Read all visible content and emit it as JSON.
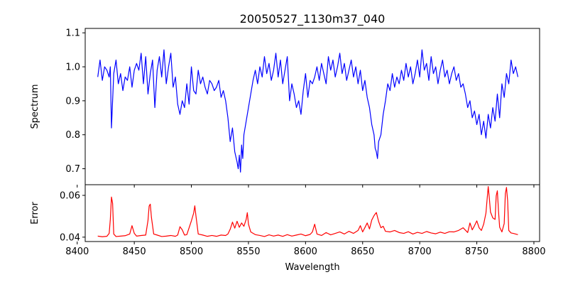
{
  "chart_data": [
    {
      "type": "line",
      "title": "20050527_1130m37_040",
      "xlabel": "",
      "ylabel": "Spectrum",
      "xlim": [
        8407,
        8805
      ],
      "ylim": [
        0.653,
        1.113
      ],
      "xticks": [
        8400,
        8450,
        8500,
        8550,
        8600,
        8650,
        8700,
        8750,
        8800
      ],
      "yticks": [
        0.7,
        0.8,
        0.9,
        1.0,
        1.1
      ],
      "ytick_labels": [
        "0.7",
        "0.8",
        "0.9",
        "1.0",
        "1.1"
      ],
      "grid": false,
      "series": [
        {
          "color": "#0000ff",
          "x": [
            8418,
            8420,
            8422,
            8424,
            8426,
            8428,
            8429,
            8430,
            8432,
            8434,
            8436,
            8438,
            8440,
            8442,
            8444,
            8446,
            8448,
            8450,
            8452,
            8454,
            8456,
            8458,
            8460,
            8462,
            8464,
            8466,
            8468,
            8470,
            8472,
            8474,
            8476,
            8478,
            8480,
            8482,
            8484,
            8486,
            8488,
            8490,
            8492,
            8494,
            8496,
            8498,
            8500,
            8502,
            8504,
            8506,
            8508,
            8510,
            8512,
            8514,
            8516,
            8518,
            8520,
            8522,
            8524,
            8526,
            8528,
            8530,
            8532,
            8534,
            8536,
            8538,
            8540,
            8541,
            8542,
            8543,
            8544,
            8545,
            8546,
            8548,
            8550,
            8552,
            8554,
            8556,
            8558,
            8560,
            8562,
            8564,
            8566,
            8568,
            8570,
            8572,
            8574,
            8576,
            8578,
            8580,
            8582,
            8584,
            8586,
            8588,
            8590,
            8592,
            8594,
            8596,
            8598,
            8600,
            8602,
            8604,
            8606,
            8608,
            8610,
            8612,
            8614,
            8616,
            8618,
            8620,
            8622,
            8624,
            8626,
            8628,
            8630,
            8632,
            8634,
            8636,
            8638,
            8640,
            8642,
            8644,
            8646,
            8648,
            8650,
            8652,
            8654,
            8656,
            8658,
            8660,
            8661,
            8662,
            8663,
            8664,
            8666,
            8668,
            8670,
            8672,
            8674,
            8676,
            8678,
            8680,
            8682,
            8684,
            8686,
            8688,
            8690,
            8692,
            8694,
            8696,
            8698,
            8700,
            8702,
            8704,
            8706,
            8708,
            8710,
            8712,
            8714,
            8716,
            8718,
            8720,
            8722,
            8724,
            8726,
            8728,
            8730,
            8732,
            8734,
            8736,
            8738,
            8740,
            8742,
            8744,
            8746,
            8748,
            8750,
            8752,
            8754,
            8756,
            8758,
            8760,
            8762,
            8764,
            8766,
            8768,
            8770,
            8772,
            8774,
            8776,
            8778,
            8780,
            8782,
            8784,
            8786
          ],
          "y": [
            0.97,
            1.02,
            0.96,
            1.0,
            0.99,
            0.97,
            1.0,
            0.82,
            0.98,
            1.02,
            0.95,
            0.98,
            0.93,
            0.97,
            0.96,
            1.0,
            0.94,
            0.99,
            1.01,
            0.99,
            1.04,
            0.95,
            1.03,
            0.92,
            0.98,
            1.02,
            0.88,
            0.99,
            1.03,
            0.97,
            1.05,
            0.95,
            1.0,
            1.04,
            0.94,
            0.97,
            0.89,
            0.86,
            0.9,
            0.88,
            0.95,
            0.89,
            1.0,
            0.93,
            0.92,
            0.99,
            0.95,
            0.97,
            0.94,
            0.92,
            0.96,
            0.95,
            0.93,
            0.94,
            0.96,
            0.91,
            0.93,
            0.9,
            0.85,
            0.78,
            0.82,
            0.75,
            0.72,
            0.7,
            0.74,
            0.69,
            0.77,
            0.73,
            0.8,
            0.84,
            0.88,
            0.92,
            0.96,
            0.99,
            0.95,
            1.0,
            0.97,
            1.03,
            0.98,
            1.01,
            0.96,
            0.99,
            1.04,
            0.97,
            1.02,
            0.95,
            0.99,
            1.03,
            0.9,
            0.95,
            0.92,
            0.88,
            0.9,
            0.86,
            0.93,
            0.98,
            0.91,
            0.96,
            0.95,
            0.97,
            1.0,
            0.96,
            1.01,
            0.98,
            0.95,
            1.03,
            0.99,
            1.02,
            0.97,
            1.0,
            1.04,
            0.98,
            1.01,
            0.96,
            0.99,
            1.02,
            0.97,
            1.0,
            0.95,
            0.99,
            0.93,
            0.96,
            0.91,
            0.88,
            0.83,
            0.8,
            0.76,
            0.75,
            0.73,
            0.78,
            0.8,
            0.86,
            0.9,
            0.95,
            0.93,
            0.98,
            0.94,
            0.97,
            0.95,
            0.99,
            0.96,
            1.01,
            0.97,
            1.0,
            0.95,
            0.98,
            1.02,
            0.97,
            1.05,
            0.99,
            1.01,
            0.96,
            1.03,
            0.98,
            1.0,
            0.95,
            0.99,
            1.02,
            0.97,
            0.99,
            0.95,
            0.98,
            1.0,
            0.96,
            0.98,
            0.94,
            0.95,
            0.92,
            0.88,
            0.9,
            0.85,
            0.87,
            0.83,
            0.86,
            0.8,
            0.84,
            0.79,
            0.86,
            0.82,
            0.88,
            0.84,
            0.92,
            0.85,
            0.95,
            0.91,
            0.98,
            0.95,
            1.02,
            0.98,
            1.0,
            0.97
          ]
        }
      ]
    },
    {
      "type": "line",
      "title": "",
      "xlabel": "Wavelength",
      "ylabel": "Error",
      "xlim": [
        8407,
        8805
      ],
      "ylim": [
        0.0379,
        0.0651
      ],
      "xticks": [
        8400,
        8450,
        8500,
        8550,
        8600,
        8650,
        8700,
        8750,
        8800
      ],
      "yticks": [
        0.04,
        0.06
      ],
      "ytick_labels": [
        "0.04",
        "0.06"
      ],
      "grid": false,
      "series": [
        {
          "color": "#ff0000",
          "x": [
            8418,
            8422,
            8426,
            8428,
            8429,
            8430,
            8431,
            8432,
            8434,
            8438,
            8442,
            8446,
            8448,
            8450,
            8452,
            8456,
            8460,
            8462,
            8463,
            8464,
            8465,
            8467,
            8470,
            8474,
            8478,
            8482,
            8486,
            8488,
            8490,
            8492,
            8494,
            8496,
            8500,
            8502,
            8503,
            8504,
            8506,
            8510,
            8514,
            8518,
            8522,
            8526,
            8530,
            8532,
            8534,
            8536,
            8538,
            8540,
            8542,
            8544,
            8546,
            8548,
            8549,
            8550,
            8552,
            8556,
            8560,
            8564,
            8568,
            8572,
            8576,
            8580,
            8584,
            8588,
            8592,
            8596,
            8600,
            8604,
            8606,
            8608,
            8610,
            8614,
            8618,
            8622,
            8626,
            8630,
            8634,
            8638,
            8642,
            8646,
            8648,
            8650,
            8652,
            8654,
            8656,
            8658,
            8660,
            8662,
            8664,
            8666,
            8668,
            8670,
            8674,
            8678,
            8682,
            8686,
            8690,
            8694,
            8698,
            8702,
            8706,
            8710,
            8714,
            8718,
            8722,
            8726,
            8730,
            8734,
            8738,
            8742,
            8744,
            8746,
            8748,
            8750,
            8752,
            8754,
            8756,
            8758,
            8759,
            8760,
            8761,
            8762,
            8764,
            8766,
            8767,
            8768,
            8769,
            8770,
            8772,
            8774,
            8775,
            8776,
            8777,
            8778,
            8780,
            8782,
            8784,
            8786
          ],
          "y": [
            0.0405,
            0.0402,
            0.0404,
            0.0418,
            0.0485,
            0.0592,
            0.0562,
            0.0415,
            0.0403,
            0.0405,
            0.0407,
            0.0415,
            0.0455,
            0.0418,
            0.0405,
            0.0408,
            0.041,
            0.048,
            0.0549,
            0.0558,
            0.0495,
            0.0415,
            0.041,
            0.0403,
            0.0405,
            0.0408,
            0.0404,
            0.041,
            0.045,
            0.0435,
            0.041,
            0.0412,
            0.0478,
            0.0515,
            0.055,
            0.0502,
            0.0415,
            0.041,
            0.0404,
            0.0408,
            0.0404,
            0.041,
            0.0408,
            0.0415,
            0.0438,
            0.0472,
            0.0443,
            0.0476,
            0.0447,
            0.0468,
            0.0452,
            0.0485,
            0.0517,
            0.0462,
            0.0425,
            0.0412,
            0.0408,
            0.0403,
            0.0411,
            0.0405,
            0.041,
            0.0404,
            0.0412,
            0.0405,
            0.041,
            0.0415,
            0.0407,
            0.0413,
            0.0425,
            0.0462,
            0.0415,
            0.0408,
            0.0422,
            0.0411,
            0.0418,
            0.0425,
            0.0415,
            0.0428,
            0.0418,
            0.0432,
            0.0455,
            0.0425,
            0.0446,
            0.0468,
            0.0439,
            0.0482,
            0.0503,
            0.0518,
            0.0475,
            0.0445,
            0.0452,
            0.0428,
            0.0425,
            0.0432,
            0.0422,
            0.0418,
            0.0426,
            0.0415,
            0.0423,
            0.0418,
            0.0427,
            0.042,
            0.0416,
            0.0424,
            0.0418,
            0.0426,
            0.0425,
            0.0432,
            0.0445,
            0.0422,
            0.0468,
            0.0435,
            0.0455,
            0.0478,
            0.0445,
            0.0432,
            0.0462,
            0.0515,
            0.058,
            0.0642,
            0.0585,
            0.052,
            0.0492,
            0.0485,
            0.0598,
            0.0622,
            0.0525,
            0.0448,
            0.0425,
            0.0465,
            0.0608,
            0.0638,
            0.0575,
            0.0432,
            0.042,
            0.0418,
            0.0415,
            0.0412
          ]
        }
      ]
    }
  ]
}
